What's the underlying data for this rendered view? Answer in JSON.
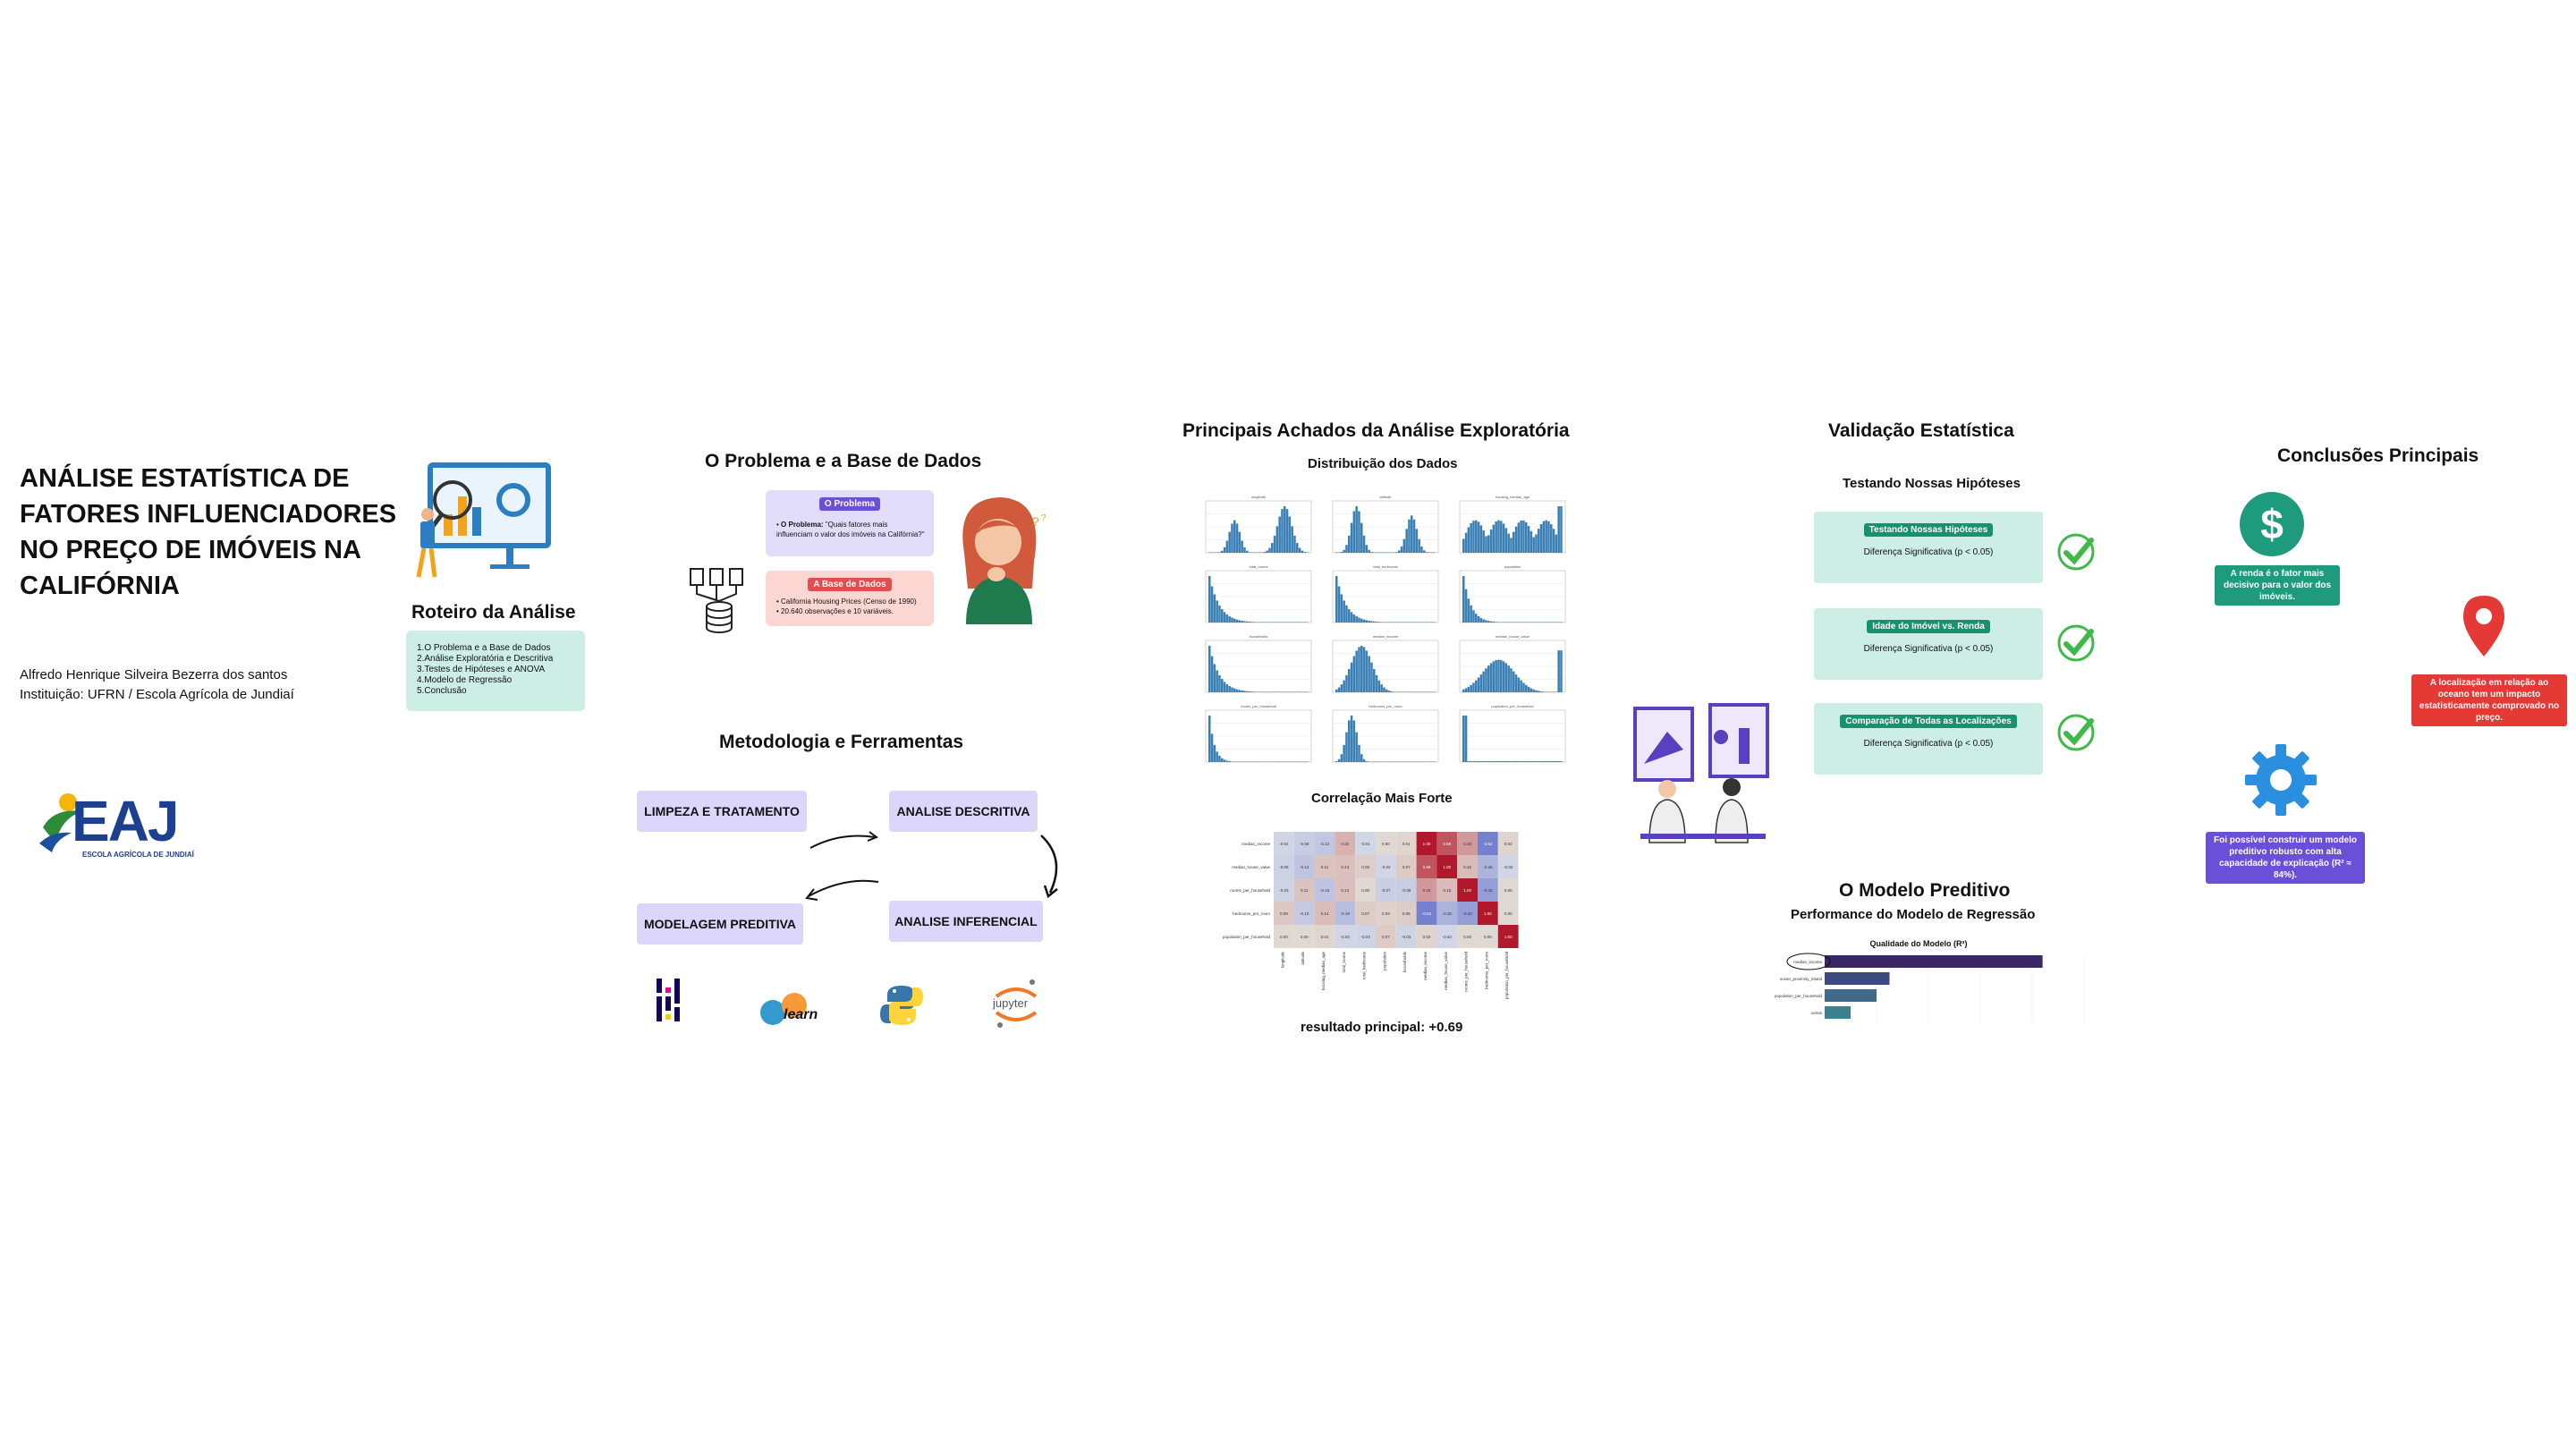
{
  "header": {
    "title": "ANÁLISE ESTATÍSTICA DE FATORES INFLUENCIADORES NO PREÇO DE IMÓVEIS NA CALIFÓRNIA",
    "author": "Alfredo Henrique Silveira Bezerra dos santos",
    "institution": "Instituição: UFRN / Escola Agrícola de Jundiaí"
  },
  "roteiro": {
    "title": "Roteiro da Análise",
    "items": [
      "1.O Problema e a Base de Dados",
      "2.Análise Exploratória e Descritiva",
      "3.Testes de Hipóteses e ANOVA",
      "4.Modelo de Regressão",
      "5.Conclusão"
    ]
  },
  "logo": {
    "mark": "EAJ",
    "caption": "ESCOLA AGRÍCOLA DE JUNDIAÍ"
  },
  "problema": {
    "title": "O Problema e a Base de Dados",
    "problem_tag": "O Problema",
    "problem_bold": "O Problema:",
    "problem_text": "\"Quais fatores mais influenciam o valor dos imóveis na Califórnia?\"",
    "base_tag": "A Base de Dados",
    "base_items": [
      "California Housing Prices (Censo de 1990)",
      "20.640 observações e 10 variáveis."
    ]
  },
  "metodologia": {
    "title": "Metodologia e Ferramentas",
    "steps": [
      "LIMPEZA E TRATAMENTO",
      "ANALISE DESCRITIVA",
      "ANALISE INFERENCIAL",
      "MODELAGEM PREDITIVA"
    ],
    "tools": [
      "learn",
      "jupyter"
    ]
  },
  "achados": {
    "title": "Principais Achados da Análise Exploratória",
    "dist_title": "Distribuição dos Dados",
    "corr_title": "Correlação Mais Forte",
    "result": "resultado principal: +0.69",
    "histograms": [
      "longitude",
      "latitude",
      "housing_median_age",
      "total_rooms",
      "total_bedrooms",
      "population",
      "households",
      "median_income",
      "median_house_value",
      "rooms_per_household",
      "bedrooms_per_room",
      "population_per_household"
    ]
  },
  "validacao": {
    "title": "Validação Estatística",
    "subtitle": "Testando Nossas Hipóteses",
    "tests": [
      {
        "tag": "Testando Nossas Hipóteses",
        "result": "Diferença Significativa (p < 0.05)"
      },
      {
        "tag": "Idade do Imóvel vs. Renda",
        "result": "Diferença Significativa (p < 0.05)"
      },
      {
        "tag": "Comparação de Todas as Localizações",
        "result": "Diferença Significativa (p < 0.05)"
      }
    ]
  },
  "modelo": {
    "title": "O Modelo Preditivo",
    "subtitle": "Performance do Modelo de Regressão",
    "chart_title": "Qualidade do Modelo (R²)"
  },
  "chart_data": {
    "type": "bar",
    "title": "Qualidade do Modelo (R²)",
    "categories": [
      "median_income",
      "ocean_proximity_inland",
      "population_per_household",
      "outras"
    ],
    "values": [
      0.84,
      0.25,
      0.2,
      0.1
    ],
    "orientation": "horizontal"
  },
  "correlation": {
    "rows": [
      "median_income",
      "median_house_value",
      "rooms_per_household",
      "bedrooms_per_room",
      "population_per_household"
    ],
    "cols": [
      "longitude",
      "latitude",
      "housing_median_age",
      "total_rooms",
      "total_bedrooms",
      "population",
      "households",
      "median_income",
      "median_house_value",
      "rooms_per_household",
      "bedrooms_per_room",
      "population_per_household"
    ],
    "values": [
      [
        -0.02,
        -0.08,
        -0.12,
        0.2,
        -0.01,
        0.0,
        0.01,
        1.0,
        0.69,
        0.33,
        -0.62,
        0.02
      ],
      [
        -0.05,
        -0.14,
        0.11,
        0.13,
        0.05,
        -0.02,
        0.07,
        0.69,
        1.0,
        0.15,
        -0.26,
        -0.02
      ],
      [
        -0.03,
        0.11,
        -0.15,
        0.13,
        0.0,
        -0.07,
        -0.08,
        0.33,
        0.15,
        1.0,
        -0.42,
        0.0
      ],
      [
        0.09,
        -0.1,
        0.14,
        -0.19,
        0.07,
        0.03,
        0.06,
        -0.62,
        -0.26,
        -0.42,
        1.0,
        0.0
      ],
      [
        0.0,
        0.0,
        0.01,
        -0.02,
        -0.03,
        0.07,
        -0.03,
        0.02,
        -0.02,
        0.0,
        0.0,
        1.0
      ]
    ]
  },
  "conclusoes": {
    "title": "Conclusões Principais",
    "c1": "A renda é o fator mais decisivo para o valor dos imóveis.",
    "c2": "A localização em relação ao oceano tem um impacto estatisticamente comprovado no preço.",
    "c3": "Foi possível construir um modelo preditivo robusto com alta capacidade de explicação (R² ≈ 84%).",
    "c1_color": "#1e9a7c",
    "c2_color": "#e53935",
    "c3_color": "#6a4fd8"
  }
}
